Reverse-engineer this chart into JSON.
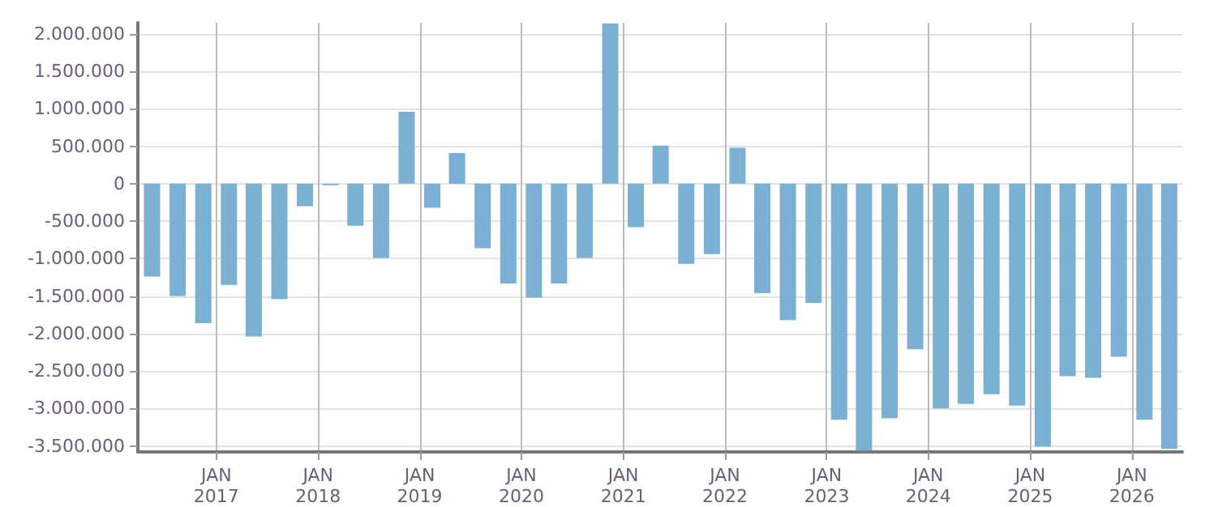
{
  "chart_data": {
    "type": "bar",
    "color": "#7ab0d3",
    "grid": true,
    "x": [
      "2016-05-15",
      "2016-08-15",
      "2016-11-15",
      "2017-02-15",
      "2017-05-15",
      "2017-08-15",
      "2017-11-15",
      "2018-02-15",
      "2018-05-15",
      "2018-08-15",
      "2018-11-15",
      "2019-02-15",
      "2019-05-15",
      "2019-08-15",
      "2019-11-15",
      "2020-02-15",
      "2020-05-15",
      "2020-08-15",
      "2020-11-15",
      "2021-02-15",
      "2021-05-15",
      "2021-08-15",
      "2021-11-15",
      "2022-02-15",
      "2022-05-15",
      "2022-08-15",
      "2022-11-15",
      "2023-02-15",
      "2023-05-15",
      "2023-08-15",
      "2023-11-15",
      "2024-02-15",
      "2024-05-15",
      "2024-08-15",
      "2024-11-15",
      "2025-02-15",
      "2025-05-15",
      "2025-08-15",
      "2025-11-15",
      "2026-02-15",
      "2026-05-15"
    ],
    "values": [
      -1240000,
      -1500000,
      -1860000,
      -1350000,
      -2040000,
      -1540000,
      -300000,
      -20000,
      -560000,
      -990000,
      960000,
      -320000,
      410000,
      -860000,
      -1330000,
      -1520000,
      -1330000,
      -990000,
      2140000,
      -580000,
      510000,
      -1070000,
      -940000,
      480000,
      -1460000,
      -1820000,
      -1590000,
      -3150000,
      -3560000,
      -3130000,
      -2210000,
      -3000000,
      -2940000,
      -2810000,
      -2960000,
      -3510000,
      -2570000,
      -2590000,
      -2310000,
      -3150000,
      -3540000
    ],
    "xlim": [
      "2016-03-25",
      "2026-07-01"
    ],
    "xticks": [
      {
        "value": "2017-01-01",
        "label": "JAN\n2017"
      },
      {
        "value": "2018-01-01",
        "label": "JAN\n2018"
      },
      {
        "value": "2019-01-01",
        "label": "JAN\n2019"
      },
      {
        "value": "2020-01-01",
        "label": "JAN\n2020"
      },
      {
        "value": "2021-01-01",
        "label": "JAN\n2021"
      },
      {
        "value": "2022-01-01",
        "label": "JAN\n2022"
      },
      {
        "value": "2023-01-01",
        "label": "JAN\n2023"
      },
      {
        "value": "2024-01-01",
        "label": "JAN\n2024"
      },
      {
        "value": "2025-01-01",
        "label": "JAN\n2025"
      },
      {
        "value": "2026-01-01",
        "label": "JAN\n2026"
      }
    ],
    "ylim": [
      -3580000,
      2150000
    ],
    "yticks": [
      {
        "value": -3500000,
        "label": "-3.500.000"
      },
      {
        "value": -3000000,
        "label": "-3.000.000"
      },
      {
        "value": -2500000,
        "label": "-2.500.000"
      },
      {
        "value": -2000000,
        "label": "-2.000.000"
      },
      {
        "value": -1500000,
        "label": "-1.500.000"
      },
      {
        "value": -1000000,
        "label": "-1.000.000"
      },
      {
        "value": -500000,
        "label": "-500.000"
      },
      {
        "value": 0,
        "label": "0"
      },
      {
        "value": 500000,
        "label": "500.000"
      },
      {
        "value": 1000000,
        "label": "1.000.000"
      },
      {
        "value": 1500000,
        "label": "1.500.000"
      },
      {
        "value": 2000000,
        "label": "2.000.000"
      }
    ]
  }
}
